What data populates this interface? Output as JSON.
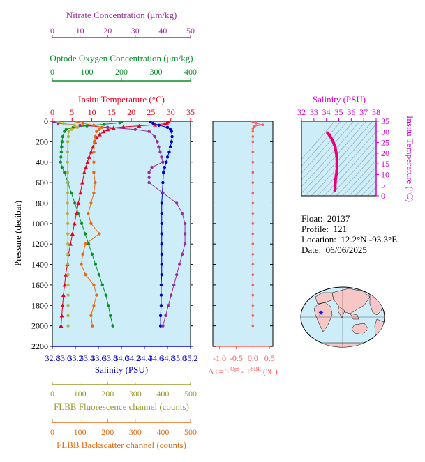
{
  "chart_data": {
    "type": "line",
    "float_info": {
      "float_label": "Float:",
      "float": "20137",
      "profile_label": "Profile:",
      "profile": "121",
      "location_label": "Location:",
      "location": "12.2°N  -93.3°E",
      "date_label": "Date:",
      "date": "06/06/2025"
    },
    "main_panel": {
      "ylabel": "Pressure (decibar)",
      "ylim": [
        0,
        2200
      ],
      "yticks": [
        0,
        200,
        400,
        600,
        800,
        1000,
        1200,
        1400,
        1600,
        1800,
        2000,
        2200
      ],
      "axes": {
        "nitrate": {
          "label": "Nitrate Concentration (μm/kg)",
          "lim": [
            0,
            50
          ],
          "ticks": [
            0,
            10,
            20,
            30,
            40,
            50
          ],
          "color": "#9b2a9b"
        },
        "oxygen": {
          "label": "Optode Oxygen Concentration (μm/kg)",
          "lim": [
            0,
            400
          ],
          "ticks": [
            0,
            100,
            200,
            300,
            400
          ],
          "color": "#0a8f2a"
        },
        "temperature": {
          "label": "Insitu Temperature (°C)",
          "lim": [
            0,
            35
          ],
          "ticks": [
            0,
            5,
            10,
            15,
            20,
            25,
            30,
            35
          ],
          "color": "#e8001c"
        },
        "salinity": {
          "label": "Salinity (PSU)",
          "lim": [
            32.8,
            35.2
          ],
          "ticks": [
            "32.8",
            "33.0",
            "33.2",
            "33.4",
            "33.6",
            "33.8",
            "34.0",
            "34.2",
            "34.4",
            "34.6",
            "34.8",
            "35.0",
            "35.2"
          ],
          "color": "#0000cc"
        },
        "fluorescence": {
          "label": "FLBB Fluorescence channel (counts)",
          "lim": [
            0,
            500
          ],
          "ticks": [
            0,
            100,
            200,
            300,
            400,
            500
          ],
          "color": "#9a9a2a"
        },
        "backscatter": {
          "label": "FLBB Backscatter channel (counts)",
          "lim": [
            0,
            500
          ],
          "ticks": [
            0,
            100,
            200,
            300,
            400,
            500
          ],
          "color": "#e86a10"
        }
      },
      "series": [
        {
          "key": "temperature",
          "color": "#e8001c",
          "marker": "triangle",
          "points": [
            [
              29.5,
              5
            ],
            [
              29.0,
              15
            ],
            [
              28.5,
              25
            ],
            [
              26.0,
              35
            ],
            [
              22.0,
              45
            ],
            [
              18.0,
              55
            ],
            [
              15.5,
              65
            ],
            [
              14.0,
              80
            ],
            [
              13.0,
              100
            ],
            [
              12.0,
              130
            ],
            [
              11.3,
              160
            ],
            [
              10.8,
              200
            ],
            [
              10.3,
              250
            ],
            [
              9.8,
              300
            ],
            [
              9.3,
              350
            ],
            [
              8.9,
              400
            ],
            [
              8.5,
              450
            ],
            [
              8.1,
              500
            ],
            [
              7.6,
              600
            ],
            [
              7.1,
              700
            ],
            [
              6.6,
              800
            ],
            [
              6.1,
              900
            ],
            [
              5.6,
              1000
            ],
            [
              5.1,
              1100
            ],
            [
              4.6,
              1200
            ],
            [
              4.1,
              1300
            ],
            [
              3.8,
              1400
            ],
            [
              3.4,
              1500
            ],
            [
              3.1,
              1600
            ],
            [
              2.8,
              1700
            ],
            [
              2.6,
              1800
            ],
            [
              2.4,
              1900
            ],
            [
              2.2,
              2000
            ]
          ]
        },
        {
          "key": "salinity",
          "color": "#0000cc",
          "marker": "circle",
          "points": [
            [
              34.5,
              5
            ],
            [
              34.55,
              20
            ],
            [
              34.65,
              40
            ],
            [
              34.8,
              60
            ],
            [
              34.85,
              80
            ],
            [
              34.87,
              100
            ],
            [
              34.88,
              150
            ],
            [
              34.87,
              200
            ],
            [
              34.85,
              250
            ],
            [
              34.83,
              300
            ],
            [
              34.8,
              350
            ],
            [
              34.78,
              400
            ],
            [
              34.75,
              450
            ],
            [
              34.73,
              500
            ],
            [
              34.72,
              600
            ],
            [
              34.71,
              700
            ],
            [
              34.7,
              800
            ],
            [
              34.7,
              900
            ],
            [
              34.7,
              1000
            ],
            [
              34.7,
              1100
            ],
            [
              34.7,
              1200
            ],
            [
              34.7,
              1300
            ],
            [
              34.7,
              1400
            ],
            [
              34.7,
              1500
            ],
            [
              34.69,
              1600
            ],
            [
              34.69,
              1700
            ],
            [
              34.69,
              1800
            ],
            [
              34.68,
              1900
            ],
            [
              34.68,
              2000
            ]
          ]
        },
        {
          "key": "oxygen",
          "color": "#0a8f2a",
          "marker": "circle",
          "points": [
            [
              200,
              5
            ],
            [
              195,
              15
            ],
            [
              150,
              30
            ],
            [
              100,
              45
            ],
            [
              60,
              60
            ],
            [
              40,
              80
            ],
            [
              35,
              100
            ],
            [
              30,
              150
            ],
            [
              28,
              200
            ],
            [
              27,
              250
            ],
            [
              26,
              300
            ],
            [
              25,
              350
            ],
            [
              24,
              400
            ],
            [
              28,
              450
            ],
            [
              35,
              500
            ],
            [
              45,
              600
            ],
            [
              55,
              700
            ],
            [
              65,
              800
            ],
            [
              75,
              900
            ],
            [
              85,
              1000
            ],
            [
              95,
              1100
            ],
            [
              105,
              1200
            ],
            [
              115,
              1300
            ],
            [
              125,
              1400
            ],
            [
              135,
              1500
            ],
            [
              145,
              1600
            ],
            [
              155,
              1700
            ],
            [
              162,
              1800
            ],
            [
              168,
              1900
            ],
            [
              175,
              2000
            ]
          ]
        },
        {
          "key": "nitrate",
          "color": "#9b2a9b",
          "marker": "circle",
          "points": [
            [
              0.5,
              5
            ],
            [
              2,
              20
            ],
            [
              10,
              40
            ],
            [
              20,
              60
            ],
            [
              30,
              80
            ],
            [
              35,
              100
            ],
            [
              37,
              150
            ],
            [
              38,
              200
            ],
            [
              38.5,
              250
            ],
            [
              39,
              300
            ],
            [
              39.5,
              350
            ],
            [
              40,
              400
            ],
            [
              36,
              450
            ],
            [
              35,
              500
            ],
            [
              35,
              550
            ],
            [
              35,
              600
            ],
            [
              40,
              700
            ],
            [
              45,
              800
            ],
            [
              47,
              900
            ],
            [
              48,
              1000
            ],
            [
              48,
              1100
            ],
            [
              48,
              1200
            ],
            [
              47,
              1300
            ],
            [
              46,
              1400
            ],
            [
              45,
              1500
            ],
            [
              44,
              1600
            ],
            [
              43,
              1700
            ],
            [
              42,
              1800
            ],
            [
              41,
              1900
            ],
            [
              40,
              2000
            ]
          ]
        },
        {
          "key": "fluorescence",
          "color": "#b4b43c",
          "marker": "circle",
          "points": [
            [
              20,
              5
            ],
            [
              40,
              20
            ],
            [
              80,
              40
            ],
            [
              90,
              60
            ],
            [
              70,
              80
            ],
            [
              60,
              100
            ],
            [
              58,
              150
            ],
            [
              56,
              200
            ],
            [
              55,
              300
            ],
            [
              55,
              400
            ],
            [
              55,
              500
            ],
            [
              55,
              600
            ],
            [
              55,
              700
            ],
            [
              55,
              800
            ],
            [
              55,
              900
            ],
            [
              56,
              1000
            ],
            [
              56,
              1100
            ],
            [
              56,
              1200
            ],
            [
              56,
              1300
            ],
            [
              56,
              1400
            ],
            [
              57,
              1500
            ],
            [
              57,
              1600
            ],
            [
              57,
              1700
            ],
            [
              57,
              1800
            ],
            [
              57,
              1900
            ],
            [
              57,
              2000
            ]
          ]
        },
        {
          "key": "backscatter",
          "color": "#e86a10",
          "marker": "circle",
          "points": [
            [
              90,
              5
            ],
            [
              110,
              20
            ],
            [
              150,
              40
            ],
            [
              180,
              60
            ],
            [
              170,
              80
            ],
            [
              160,
              100
            ],
            [
              155,
              150
            ],
            [
              152,
              200
            ],
            [
              150,
              300
            ],
            [
              150,
              400
            ],
            [
              150,
              500
            ],
            [
              155,
              600
            ],
            [
              150,
              700
            ],
            [
              140,
              800
            ],
            [
              130,
              900
            ],
            [
              140,
              1000
            ],
            [
              170,
              1100
            ],
            [
              120,
              1200
            ],
            [
              110,
              1300
            ],
            [
              105,
              1400
            ],
            [
              120,
              1500
            ],
            [
              150,
              1600
            ],
            [
              160,
              1700
            ],
            [
              150,
              1800
            ],
            [
              140,
              1900
            ],
            [
              145,
              2000
            ]
          ]
        }
      ]
    },
    "delta_panel": {
      "xlabel": "ΔT= T",
      "xlabel_sup1": "Opt",
      "xlabel_mid": " - T",
      "xlabel_sup2": "SBE",
      "xlabel_unit": " (°C)",
      "xlim": [
        -1.2,
        0.6
      ],
      "ticks": [
        "-1.0",
        "-0.5",
        "0.0",
        "0.5"
      ],
      "color": "#ff5a5a",
      "points": [
        [
          0.0,
          5
        ],
        [
          0.1,
          20
        ],
        [
          0.3,
          35
        ],
        [
          0.05,
          50
        ],
        [
          0.0,
          70
        ],
        [
          0.0,
          100
        ],
        [
          0.0,
          150
        ],
        [
          0.0,
          200
        ],
        [
          0.0,
          300
        ],
        [
          0.0,
          400
        ],
        [
          0.0,
          500
        ],
        [
          0.0,
          600
        ],
        [
          0.0,
          700
        ],
        [
          0.0,
          800
        ],
        [
          0.0,
          900
        ],
        [
          0.0,
          1000
        ],
        [
          0.0,
          1100
        ],
        [
          0.0,
          1200
        ],
        [
          0.0,
          1300
        ],
        [
          0.0,
          1400
        ],
        [
          0.0,
          1500
        ],
        [
          0.0,
          1600
        ],
        [
          0.0,
          1700
        ],
        [
          0.0,
          1800
        ],
        [
          0.0,
          1900
        ],
        [
          0.0,
          2000
        ]
      ]
    },
    "ts_panel": {
      "xlabel": "Salinity (PSU)",
      "ylabel": "Insitu Temperature (°C)",
      "xlim": [
        32,
        38
      ],
      "ylim": [
        0,
        35
      ],
      "xticks": [
        "32",
        "33",
        "34",
        "35",
        "36",
        "37",
        "38"
      ],
      "yticks": [
        "0",
        "5",
        "10",
        "15",
        "20",
        "25",
        "30",
        "35"
      ],
      "color": "#e8007a",
      "points": [
        [
          34.1,
          29.5
        ],
        [
          34.3,
          28.0
        ],
        [
          34.5,
          26.0
        ],
        [
          34.7,
          23.0
        ],
        [
          34.8,
          20.0
        ],
        [
          34.85,
          17.0
        ],
        [
          34.85,
          14.0
        ],
        [
          34.85,
          12.0
        ],
        [
          34.8,
          10.0
        ],
        [
          34.75,
          8.0
        ],
        [
          34.72,
          6.0
        ],
        [
          34.7,
          4.5
        ],
        [
          34.7,
          3.5
        ],
        [
          34.68,
          2.5
        ]
      ]
    },
    "map": {
      "marker_lon": -93.3,
      "marker_lat": 12.2
    }
  }
}
